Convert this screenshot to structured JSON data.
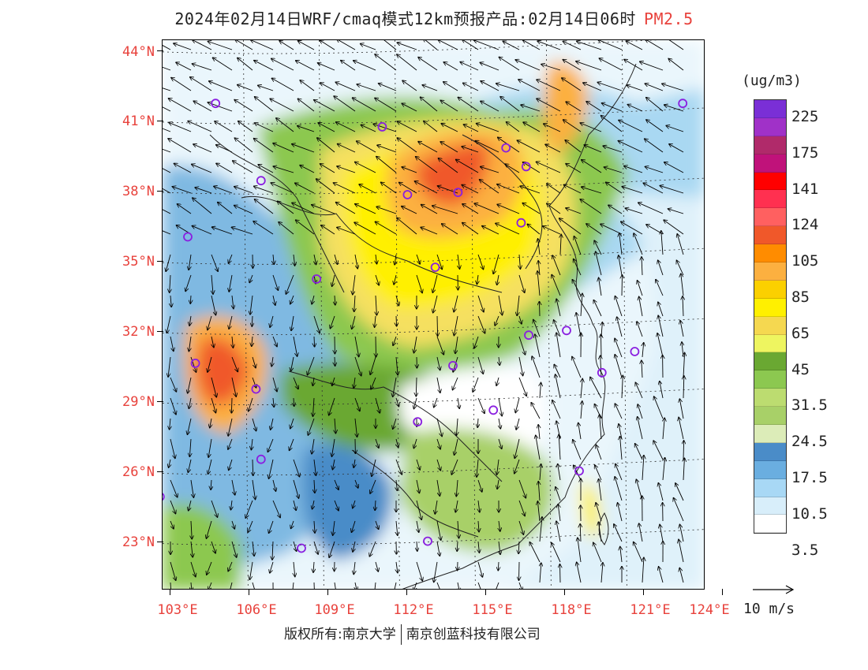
{
  "title": {
    "main": "2024年02月14日WRF/cmaq模式12km预报产品:02月14日06时",
    "product": "PM2.5"
  },
  "map": {
    "lat_labels": [
      "44°N",
      "41°N",
      "38°N",
      "35°N",
      "32°N",
      "29°N",
      "26°N",
      "23°N"
    ],
    "lon_labels": [
      "103°E",
      "106°E",
      "109°E",
      "112°E",
      "115°E",
      "118°E",
      "121°E",
      "124°E"
    ],
    "label_color": "#e8423c"
  },
  "colorbar": {
    "unit": "(ug/m3)",
    "labels": [
      "225",
      "175",
      "141",
      "124",
      "105",
      "85",
      "65",
      "45",
      "31.5",
      "24.5",
      "17.5",
      "10.5",
      "3.5"
    ],
    "colors": [
      "#7a2fd6",
      "#a031c8",
      "#b02a6a",
      "#c0127a",
      "#ff0000",
      "#ff3050",
      "#ff6060",
      "#f0582a",
      "#ff8c00",
      "#fcb040",
      "#fbd000",
      "#fff000",
      "#f5d850",
      "#eef560",
      "#6aa832",
      "#8cc850",
      "#bcdc70",
      "#a8d068",
      "#dcecb8",
      "#4a8cc8",
      "#6aaee0",
      "#a8d8f5",
      "#d8eefa",
      "#ffffff"
    ]
  },
  "wind": {
    "label": "10 m/s"
  },
  "cities": [
    {
      "lon": 104.9,
      "lat": 41.8
    },
    {
      "lon": 106.7,
      "lat": 38.5
    },
    {
      "lon": 103.8,
      "lat": 36.1
    },
    {
      "lon": 108.9,
      "lat": 34.3
    },
    {
      "lon": 111.5,
      "lat": 40.8
    },
    {
      "lon": 112.5,
      "lat": 37.9
    },
    {
      "lon": 114.5,
      "lat": 38.0
    },
    {
      "lon": 116.4,
      "lat": 39.9
    },
    {
      "lon": 117.2,
      "lat": 39.1
    },
    {
      "lon": 117.0,
      "lat": 36.7
    },
    {
      "lon": 113.6,
      "lat": 34.8
    },
    {
      "lon": 114.3,
      "lat": 30.6
    },
    {
      "lon": 117.3,
      "lat": 31.9
    },
    {
      "lon": 118.8,
      "lat": 32.1
    },
    {
      "lon": 121.5,
      "lat": 31.2
    },
    {
      "lon": 120.2,
      "lat": 30.3
    },
    {
      "lon": 115.9,
      "lat": 28.7
    },
    {
      "lon": 112.9,
      "lat": 28.2
    },
    {
      "lon": 106.5,
      "lat": 29.6
    },
    {
      "lon": 104.1,
      "lat": 30.7
    },
    {
      "lon": 106.7,
      "lat": 26.6
    },
    {
      "lon": 102.7,
      "lat": 25.0
    },
    {
      "lon": 108.3,
      "lat": 22.8
    },
    {
      "lon": 113.3,
      "lat": 23.1
    },
    {
      "lon": 119.3,
      "lat": 26.1
    },
    {
      "lon": 123.4,
      "lat": 41.8
    }
  ],
  "copyright": {
    "left": "版权所有:南京大学",
    "right": "南京创蓝科技有限公司"
  }
}
